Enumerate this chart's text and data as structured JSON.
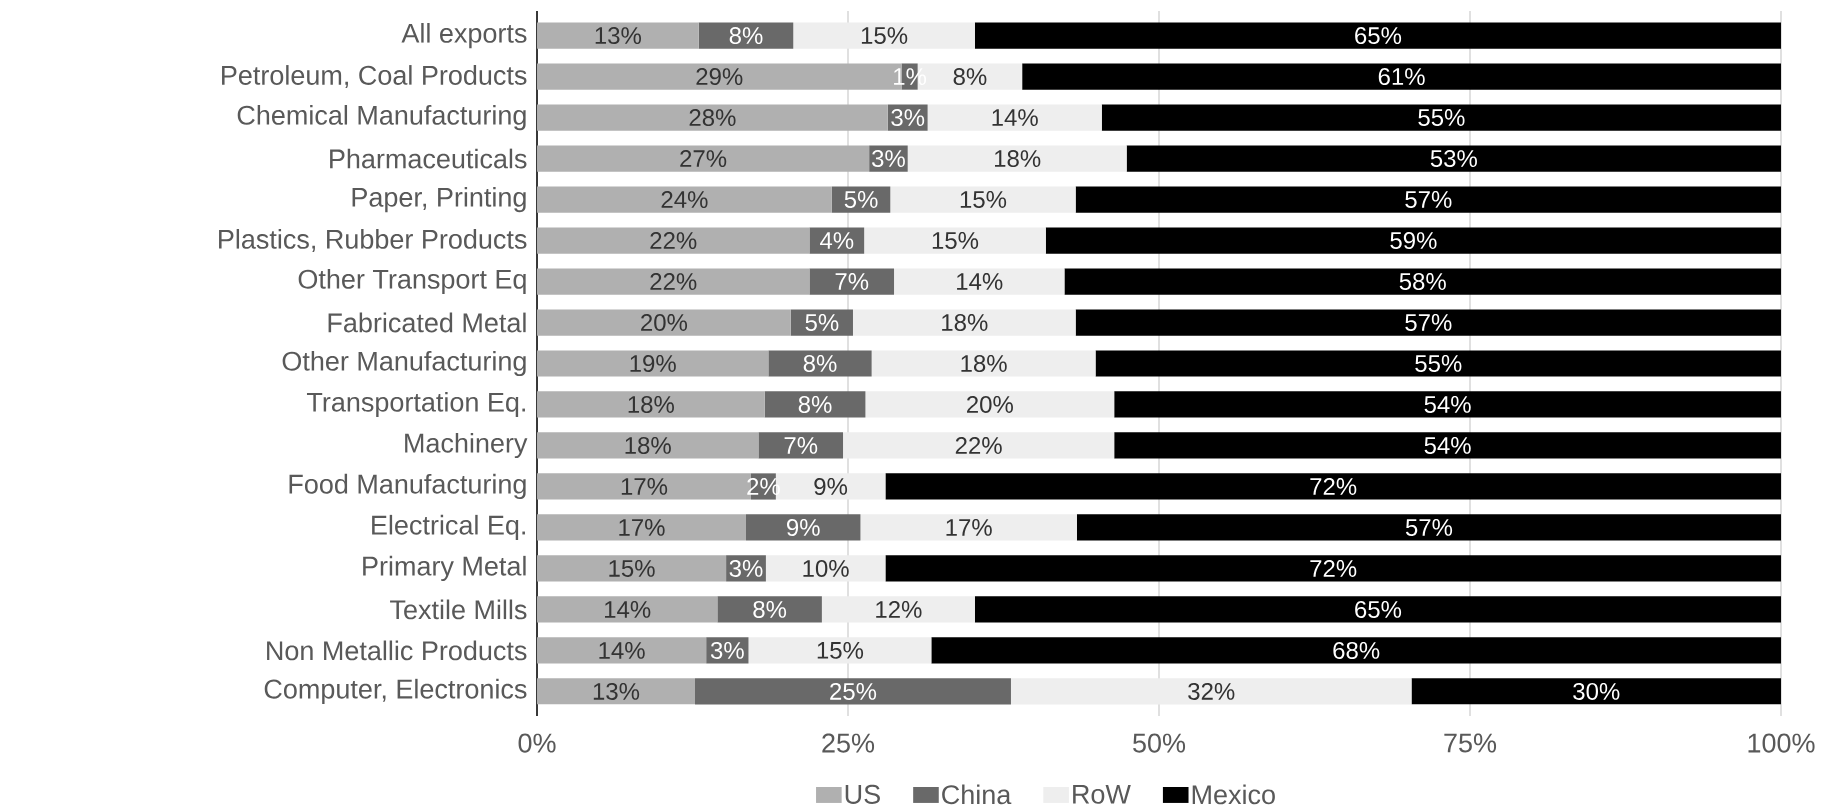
{
  "chart_data": {
    "type": "bar",
    "orientation": "horizontal",
    "stacked": true,
    "categories": [
      "All exports",
      "Petroleum, Coal Products",
      "Chemical Manufacturing",
      "Pharmaceuticals",
      "Paper, Printing",
      "Plastics, Rubber Products",
      "Other Transport Eq",
      "Fabricated Metal",
      "Other Manufacturing",
      "Transportation Eq.",
      "Machinery",
      "Food Manufacturing",
      "Electrical Eq.",
      "Primary Metal",
      "Textile Mills",
      "Non Metallic Products",
      "Computer, Electronics"
    ],
    "series": [
      {
        "name": "US",
        "color": "#b0b0b0",
        "values": [
          13.0,
          29.3,
          28.2,
          26.7,
          23.7,
          21.9,
          21.9,
          20.4,
          18.6,
          18.3,
          17.8,
          17.2,
          16.8,
          15.2,
          14.5,
          13.6,
          12.7
        ],
        "value_labels": [
          "13%",
          "29%",
          "28%",
          "27%",
          "24%",
          "22%",
          "22%",
          "20%",
          "19%",
          "18%",
          "18%",
          "17%",
          "17%",
          "15%",
          "14%",
          "14%",
          "13%"
        ]
      },
      {
        "name": "China",
        "color": "#696969",
        "values": [
          7.6,
          1.3,
          3.2,
          3.1,
          4.7,
          4.4,
          6.8,
          5.0,
          8.3,
          8.1,
          6.8,
          2.0,
          9.2,
          3.2,
          8.4,
          3.4,
          25.4
        ],
        "value_labels": [
          "8%",
          "1%",
          "3%",
          "3%",
          "5%",
          "4%",
          "7%",
          "5%",
          "8%",
          "8%",
          "7%",
          "2%",
          "9%",
          "3%",
          "8%",
          "3%",
          "25%"
        ]
      },
      {
        "name": "RoW",
        "color": "#eeeeee",
        "values": [
          14.6,
          8.4,
          14.0,
          17.6,
          14.9,
          14.6,
          13.7,
          17.9,
          18.0,
          20.0,
          21.8,
          8.8,
          17.4,
          9.6,
          12.3,
          14.7,
          32.2
        ],
        "value_labels": [
          "15%",
          "8%",
          "14%",
          "18%",
          "15%",
          "15%",
          "14%",
          "18%",
          "18%",
          "20%",
          "22%",
          "9%",
          "17%",
          "10%",
          "12%",
          "15%",
          "32%"
        ]
      },
      {
        "name": "Mexico",
        "color": "#000000",
        "values": [
          64.8,
          61.0,
          54.6,
          52.6,
          56.7,
          59.1,
          57.6,
          56.7,
          55.1,
          53.6,
          53.6,
          72.0,
          56.6,
          72.0,
          64.8,
          68.3,
          29.7
        ],
        "value_labels": [
          "65%",
          "61%",
          "55%",
          "53%",
          "57%",
          "59%",
          "58%",
          "57%",
          "55%",
          "54%",
          "54%",
          "72%",
          "57%",
          "72%",
          "65%",
          "68%",
          "30%"
        ]
      }
    ],
    "xlim": [
      0,
      100
    ],
    "xticks": [
      {
        "value": 0,
        "label": "0%"
      },
      {
        "value": 25,
        "label": "25%"
      },
      {
        "value": 50,
        "label": "50%"
      },
      {
        "value": 75,
        "label": "75%"
      },
      {
        "value": 100,
        "label": "100%"
      }
    ],
    "grid": "x",
    "legend": "bottom"
  }
}
